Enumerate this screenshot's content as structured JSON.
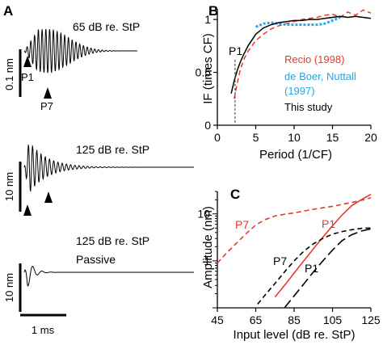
{
  "panel_a": {
    "letter": "A",
    "traces": [
      {
        "condition": "65 dB re. StP",
        "scale_label": "0.1 nm",
        "markers": [
          "P1",
          "P7"
        ]
      },
      {
        "condition": "125 dB re. StP",
        "scale_label": "10 nm"
      },
      {
        "condition": "125 dB re. StP",
        "condition2": "Passive",
        "scale_label": "10 nm"
      }
    ],
    "time_scale_label": "1 ms"
  },
  "chart_data": [
    {
      "panel": "B",
      "type": "line",
      "xlabel": "Period (1/CF)",
      "ylabel": "IF (times CF)",
      "xlim": [
        0,
        20
      ],
      "ylim": [
        0,
        1.1
      ],
      "xticks": [
        "0",
        "5",
        "10",
        "15",
        "20"
      ],
      "yticks": [
        "0",
        "0.5",
        "1"
      ],
      "annotation": "P1",
      "p1_period": 2.3,
      "legend_position": "lower-right",
      "series": [
        {
          "name": "Recio (1998)",
          "color": "#e03c31",
          "dash": "dashed",
          "x": [
            2.2,
            2.6,
            3.0,
            3.5,
            4.0,
            5.0,
            6.0,
            7.0,
            8.0,
            9.0,
            10.0,
            11.0,
            12.0,
            13.0,
            14.0,
            15.0,
            16.0,
            17.0,
            18.0,
            19.0,
            20.0
          ],
          "y": [
            0.25,
            0.4,
            0.53,
            0.63,
            0.7,
            0.8,
            0.86,
            0.91,
            0.94,
            0.96,
            0.98,
            1.0,
            1.01,
            1.02,
            1.04,
            1.05,
            1.02,
            1.07,
            1.04,
            1.09,
            1.06
          ]
        },
        {
          "name": "de Boer, Nuttall",
          "name2": "(1997)",
          "color": "#2aa7df",
          "dash": "dotted",
          "x": [
            5.0,
            6.0,
            7.0,
            8.0,
            9.0,
            10.0,
            11.0,
            12.0,
            13.0,
            14.0,
            15.0,
            16.0
          ],
          "y": [
            0.93,
            0.96,
            0.97,
            0.96,
            0.95,
            0.95,
            0.95,
            0.95,
            0.95,
            0.96,
            0.99,
            1.02
          ]
        },
        {
          "name": "This study",
          "color": "#000000",
          "dash": "solid",
          "x": [
            1.8,
            2.2,
            2.6,
            3.0,
            3.5,
            4.0,
            5.0,
            6.0,
            7.0,
            8.0,
            9.0,
            10.0,
            11.0,
            12.0,
            13.0,
            14.0,
            15.0,
            16.0,
            17.0,
            18.0,
            19.0,
            20.0
          ],
          "y": [
            0.3,
            0.42,
            0.52,
            0.6,
            0.68,
            0.75,
            0.86,
            0.92,
            0.95,
            0.97,
            0.98,
            0.99,
            0.99,
            1.0,
            1.0,
            1.01,
            1.02,
            1.03,
            1.02,
            1.03,
            1.02,
            1.01
          ]
        }
      ]
    },
    {
      "panel": "C",
      "type": "line",
      "xlabel": "Input level (dB re. StP)",
      "ylabel": "Amplitude (nm)",
      "xlim": [
        45,
        125
      ],
      "ylim": [
        0.1,
        30
      ],
      "yscale": "log",
      "xticks": [
        "45",
        "65",
        "85",
        "105",
        "125"
      ],
      "yticks": [
        "1",
        "10"
      ],
      "series": [
        {
          "name": "P7",
          "color": "#e03c31",
          "dash": "dashed",
          "x": [
            45,
            50,
            55,
            60,
            65,
            70,
            75,
            80,
            85,
            90,
            95,
            100,
            105,
            110,
            115,
            120,
            125
          ],
          "y": [
            0.9,
            1.5,
            2.4,
            3.8,
            5.8,
            7.6,
            9.0,
            9.8,
            10.5,
            11.5,
            12.5,
            13.5,
            14.5,
            16.0,
            17.5,
            19.5,
            22.0
          ]
        },
        {
          "name": "P1",
          "color": "#e03c31",
          "dash": "solid",
          "x": [
            75,
            80,
            85,
            90,
            95,
            100,
            105,
            110,
            115,
            120,
            125
          ],
          "y": [
            0.17,
            0.3,
            0.55,
            1.0,
            1.8,
            3.2,
            5.6,
            9.5,
            15.0,
            20.0,
            26.0
          ]
        },
        {
          "name": "P7",
          "color": "#000000",
          "dash": "dashed",
          "x": [
            66,
            70,
            75,
            80,
            85,
            90,
            95,
            100,
            105,
            110,
            115,
            120,
            125
          ],
          "y": [
            0.12,
            0.19,
            0.33,
            0.58,
            1.0,
            1.6,
            2.3,
            3.0,
            3.7,
            4.2,
            4.6,
            4.9,
            5.0
          ]
        },
        {
          "name": "P1",
          "color": "#000000",
          "dash": "longdash",
          "x": [
            80,
            85,
            90,
            95,
            100,
            105,
            110,
            115,
            120,
            125
          ],
          "y": [
            0.1,
            0.18,
            0.32,
            0.58,
            1.0,
            1.7,
            2.7,
            3.6,
            4.3,
            4.8
          ]
        }
      ]
    }
  ]
}
